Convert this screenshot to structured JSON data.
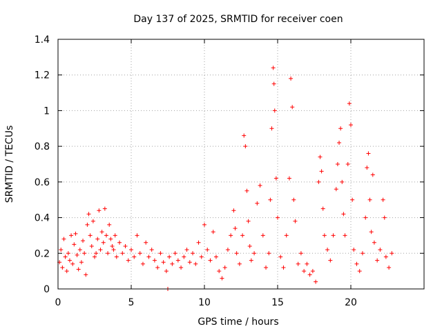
{
  "chart_data": {
    "type": "scatter",
    "title": "Day 137 of 2025, SRMTID for receiver coen",
    "xlabel": "GPS time / hours",
    "ylabel": "SRMTID / TECUs",
    "xlim": [
      0,
      25
    ],
    "ylim": [
      0,
      1.4
    ],
    "x_ticks": [
      0,
      5,
      10,
      15,
      20
    ],
    "x_tick_labels": [
      "0",
      "5",
      "10",
      "15",
      "20"
    ],
    "y_ticks": [
      0,
      0.2,
      0.4,
      0.6,
      0.8,
      1,
      1.2,
      1.4
    ],
    "y_tick_labels": [
      "0",
      "0.2",
      "0.4",
      "0.6",
      "0.8",
      "1",
      "1.2",
      "1.4"
    ],
    "grid": true,
    "marker": "plus",
    "series": [
      {
        "name": "SRMTID",
        "color": "#ff0000",
        "points": [
          [
            0.1,
            0.15
          ],
          [
            0.2,
            0.22
          ],
          [
            0.3,
            0.12
          ],
          [
            0.4,
            0.28
          ],
          [
            0.5,
            0.18
          ],
          [
            0.6,
            0.1
          ],
          [
            0.7,
            0.2
          ],
          [
            0.8,
            0.16
          ],
          [
            0.9,
            0.3
          ],
          [
            1.0,
            0.14
          ],
          [
            1.1,
            0.25
          ],
          [
            1.2,
            0.31
          ],
          [
            1.3,
            0.19
          ],
          [
            1.4,
            0.11
          ],
          [
            1.5,
            0.22
          ],
          [
            1.6,
            0.15
          ],
          [
            1.7,
            0.27
          ],
          [
            1.8,
            0.2
          ],
          [
            1.9,
            0.08
          ],
          [
            2.0,
            0.36
          ],
          [
            2.1,
            0.42
          ],
          [
            2.2,
            0.3
          ],
          [
            2.3,
            0.24
          ],
          [
            2.4,
            0.38
          ],
          [
            2.5,
            0.18
          ],
          [
            2.6,
            0.2
          ],
          [
            2.7,
            0.28
          ],
          [
            2.8,
            0.44
          ],
          [
            2.9,
            0.22
          ],
          [
            3.0,
            0.32
          ],
          [
            3.1,
            0.26
          ],
          [
            3.2,
            0.45
          ],
          [
            3.3,
            0.3
          ],
          [
            3.4,
            0.2
          ],
          [
            3.5,
            0.36
          ],
          [
            3.6,
            0.28
          ],
          [
            3.7,
            0.24
          ],
          [
            3.8,
            0.22
          ],
          [
            3.9,
            0.3
          ],
          [
            4.0,
            0.18
          ],
          [
            4.2,
            0.26
          ],
          [
            4.4,
            0.2
          ],
          [
            4.6,
            0.24
          ],
          [
            4.8,
            0.16
          ],
          [
            5.0,
            0.22
          ],
          [
            5.2,
            0.18
          ],
          [
            5.4,
            0.3
          ],
          [
            5.6,
            0.2
          ],
          [
            5.8,
            0.14
          ],
          [
            6.0,
            0.26
          ],
          [
            6.2,
            0.18
          ],
          [
            6.4,
            0.22
          ],
          [
            6.6,
            0.16
          ],
          [
            6.8,
            0.12
          ],
          [
            7.0,
            0.2
          ],
          [
            7.2,
            0.15
          ],
          [
            7.4,
            0.1
          ],
          [
            7.5,
            0.0
          ],
          [
            7.6,
            0.18
          ],
          [
            7.8,
            0.14
          ],
          [
            8.0,
            0.2
          ],
          [
            8.2,
            0.16
          ],
          [
            8.4,
            0.12
          ],
          [
            8.6,
            0.18
          ],
          [
            8.8,
            0.22
          ],
          [
            9.0,
            0.15
          ],
          [
            9.2,
            0.2
          ],
          [
            9.4,
            0.14
          ],
          [
            9.6,
            0.26
          ],
          [
            9.8,
            0.18
          ],
          [
            10.0,
            0.36
          ],
          [
            10.2,
            0.22
          ],
          [
            10.4,
            0.16
          ],
          [
            10.6,
            0.32
          ],
          [
            10.8,
            0.18
          ],
          [
            11.0,
            0.1
          ],
          [
            11.2,
            0.06
          ],
          [
            11.4,
            0.12
          ],
          [
            11.6,
            0.22
          ],
          [
            11.8,
            0.3
          ],
          [
            12.0,
            0.44
          ],
          [
            12.1,
            0.34
          ],
          [
            12.2,
            0.2
          ],
          [
            12.4,
            0.14
          ],
          [
            12.6,
            0.3
          ],
          [
            12.7,
            0.86
          ],
          [
            12.8,
            0.8
          ],
          [
            12.9,
            0.55
          ],
          [
            13.0,
            0.38
          ],
          [
            13.1,
            0.24
          ],
          [
            13.2,
            0.16
          ],
          [
            13.4,
            0.2
          ],
          [
            13.6,
            0.48
          ],
          [
            13.8,
            0.58
          ],
          [
            14.0,
            0.3
          ],
          [
            14.2,
            0.12
          ],
          [
            14.4,
            0.2
          ],
          [
            14.5,
            0.5
          ],
          [
            14.6,
            0.9
          ],
          [
            14.7,
            1.24
          ],
          [
            14.75,
            1.15
          ],
          [
            14.8,
            1.0
          ],
          [
            14.9,
            0.62
          ],
          [
            15.0,
            0.4
          ],
          [
            15.2,
            0.18
          ],
          [
            15.4,
            0.12
          ],
          [
            15.6,
            0.3
          ],
          [
            15.8,
            0.62
          ],
          [
            15.9,
            1.18
          ],
          [
            16.0,
            1.02
          ],
          [
            16.1,
            0.5
          ],
          [
            16.2,
            0.38
          ],
          [
            16.4,
            0.14
          ],
          [
            16.6,
            0.2
          ],
          [
            16.8,
            0.1
          ],
          [
            17.0,
            0.14
          ],
          [
            17.2,
            0.08
          ],
          [
            17.4,
            0.1
          ],
          [
            17.6,
            0.04
          ],
          [
            17.8,
            0.6
          ],
          [
            17.9,
            0.74
          ],
          [
            18.0,
            0.66
          ],
          [
            18.1,
            0.45
          ],
          [
            18.2,
            0.3
          ],
          [
            18.4,
            0.22
          ],
          [
            18.6,
            0.16
          ],
          [
            18.8,
            0.3
          ],
          [
            19.0,
            0.56
          ],
          [
            19.1,
            0.7
          ],
          [
            19.2,
            0.82
          ],
          [
            19.3,
            0.9
          ],
          [
            19.4,
            0.6
          ],
          [
            19.5,
            0.42
          ],
          [
            19.6,
            0.3
          ],
          [
            19.8,
            0.7
          ],
          [
            19.9,
            1.04
          ],
          [
            20.0,
            0.92
          ],
          [
            20.1,
            0.5
          ],
          [
            20.2,
            0.22
          ],
          [
            20.4,
            0.14
          ],
          [
            20.6,
            0.1
          ],
          [
            20.8,
            0.2
          ],
          [
            21.0,
            0.4
          ],
          [
            21.1,
            0.68
          ],
          [
            21.2,
            0.76
          ],
          [
            21.3,
            0.5
          ],
          [
            21.4,
            0.32
          ],
          [
            21.5,
            0.64
          ],
          [
            21.6,
            0.26
          ],
          [
            21.8,
            0.16
          ],
          [
            22.0,
            0.22
          ],
          [
            22.2,
            0.5
          ],
          [
            22.3,
            0.4
          ],
          [
            22.4,
            0.18
          ],
          [
            22.6,
            0.12
          ],
          [
            22.8,
            0.2
          ]
        ]
      }
    ]
  }
}
